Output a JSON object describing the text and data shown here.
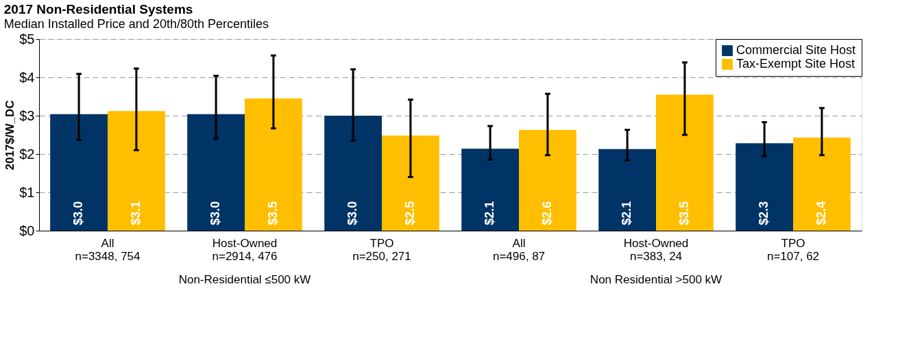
{
  "chart_data": {
    "type": "bar",
    "title": "2017 Non-Residential Systems",
    "subtitle": "Median Installed Price and 20th/80th Percentiles",
    "ylabel": "2017$/W_DC",
    "categories": [
      "All\nn=3348, 754",
      "Host-Owned\nn=2914, 476",
      "TPO\nn=250, 271",
      "All\nn=496, 87",
      "Host-Owned\nn=383, 24",
      "TPO\nn=107, 62"
    ],
    "series": [
      {
        "name": "Commercial Site Host",
        "color": "#003466",
        "values": [
          3.04,
          3.04,
          3.0,
          2.14,
          2.13,
          2.28
        ],
        "errors": [
          [
            2.37,
            4.09
          ],
          [
            2.4,
            4.04
          ],
          [
            2.35,
            4.21
          ],
          [
            1.85,
            2.73
          ],
          [
            1.83,
            2.63
          ],
          [
            1.95,
            2.83
          ]
        ],
        "value_labels": [
          "$3.0",
          "$3.0",
          "$3.0",
          "$2.1",
          "$2.1",
          "$2.3"
        ]
      },
      {
        "name": "Tax-Exempt Site Host",
        "color": "#ffbf00",
        "values": [
          3.12,
          3.45,
          2.48,
          2.63,
          3.55,
          2.43
        ],
        "errors": [
          [
            2.1,
            4.23
          ],
          [
            2.67,
            4.57
          ],
          [
            1.4,
            3.42
          ],
          [
            1.97,
            3.57
          ],
          [
            2.5,
            4.39
          ],
          [
            1.97,
            3.2
          ]
        ],
        "value_labels": [
          "$3.1",
          "$3.5",
          "$2.5",
          "$2.6",
          "$3.5",
          "$2.4"
        ]
      }
    ],
    "ylim": [
      0,
      5
    ],
    "yticks": [
      {
        "value": 0,
        "label": "$0"
      },
      {
        "value": 1,
        "label": "$1"
      },
      {
        "value": 2,
        "label": "$2"
      },
      {
        "value": 3,
        "label": "$3"
      },
      {
        "value": 4,
        "label": "$4"
      },
      {
        "value": 5,
        "label": "$5"
      }
    ],
    "grid": "y",
    "legend": "top right",
    "annotations": [
      "Non-Residential ≤500 kW",
      "Non Residential >500 kW"
    ]
  }
}
